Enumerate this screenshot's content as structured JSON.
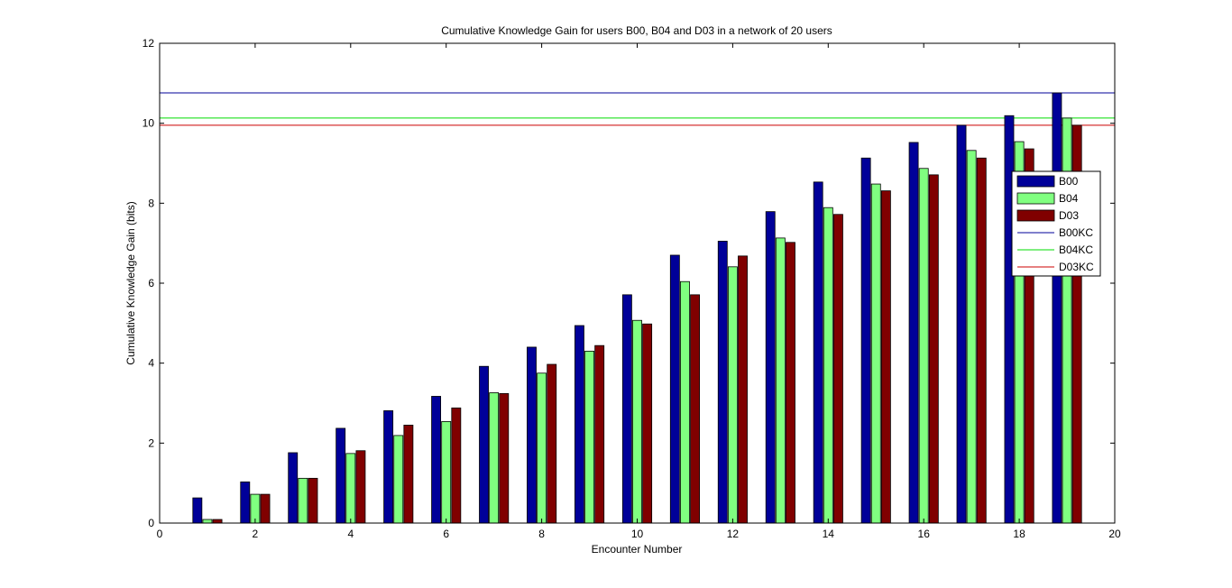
{
  "chart_data": {
    "type": "bar",
    "title": "Cumulative Knowledge Gain for users B00, B04 and D03 in a network of 20 users",
    "xlabel": "Encounter Number",
    "ylabel": "Cumulative Knowledge Gain (bits)",
    "xlim": [
      0,
      20
    ],
    "ylim": [
      0,
      12
    ],
    "xticks": [
      0,
      2,
      4,
      6,
      8,
      10,
      12,
      14,
      16,
      18,
      20
    ],
    "yticks": [
      0,
      2,
      4,
      6,
      8,
      10,
      12
    ],
    "grid": false,
    "legend_position": "right",
    "x": [
      1,
      2,
      3,
      4,
      5,
      6,
      7,
      8,
      9,
      10,
      11,
      12,
      13,
      14,
      15,
      16,
      17,
      18,
      19
    ],
    "series": [
      {
        "name": "B00",
        "color": "#000099",
        "values": [
          0.63,
          1.03,
          1.76,
          2.37,
          2.81,
          3.17,
          3.92,
          4.4,
          4.94,
          5.71,
          6.7,
          7.05,
          7.79,
          8.53,
          9.13,
          9.52,
          9.95,
          10.19,
          10.76
        ]
      },
      {
        "name": "B04",
        "color": "#80ff80",
        "values": [
          0.09,
          0.72,
          1.12,
          1.74,
          2.19,
          2.54,
          3.26,
          3.75,
          4.3,
          5.07,
          6.04,
          6.41,
          7.13,
          7.89,
          8.48,
          8.87,
          9.32,
          9.54,
          10.13
        ]
      },
      {
        "name": "D03",
        "color": "#800000",
        "values": [
          0.09,
          0.72,
          1.12,
          1.81,
          2.45,
          2.88,
          3.24,
          3.97,
          4.44,
          4.98,
          5.71,
          6.68,
          7.02,
          7.72,
          8.31,
          8.71,
          9.13,
          9.36,
          9.95
        ]
      }
    ],
    "reference_lines": [
      {
        "name": "B00KC",
        "color": "#000099",
        "value": 10.76
      },
      {
        "name": "B04KC",
        "color": "#00dd00",
        "value": 10.13
      },
      {
        "name": "D03KC",
        "color": "#cc0000",
        "value": 9.95
      }
    ]
  }
}
